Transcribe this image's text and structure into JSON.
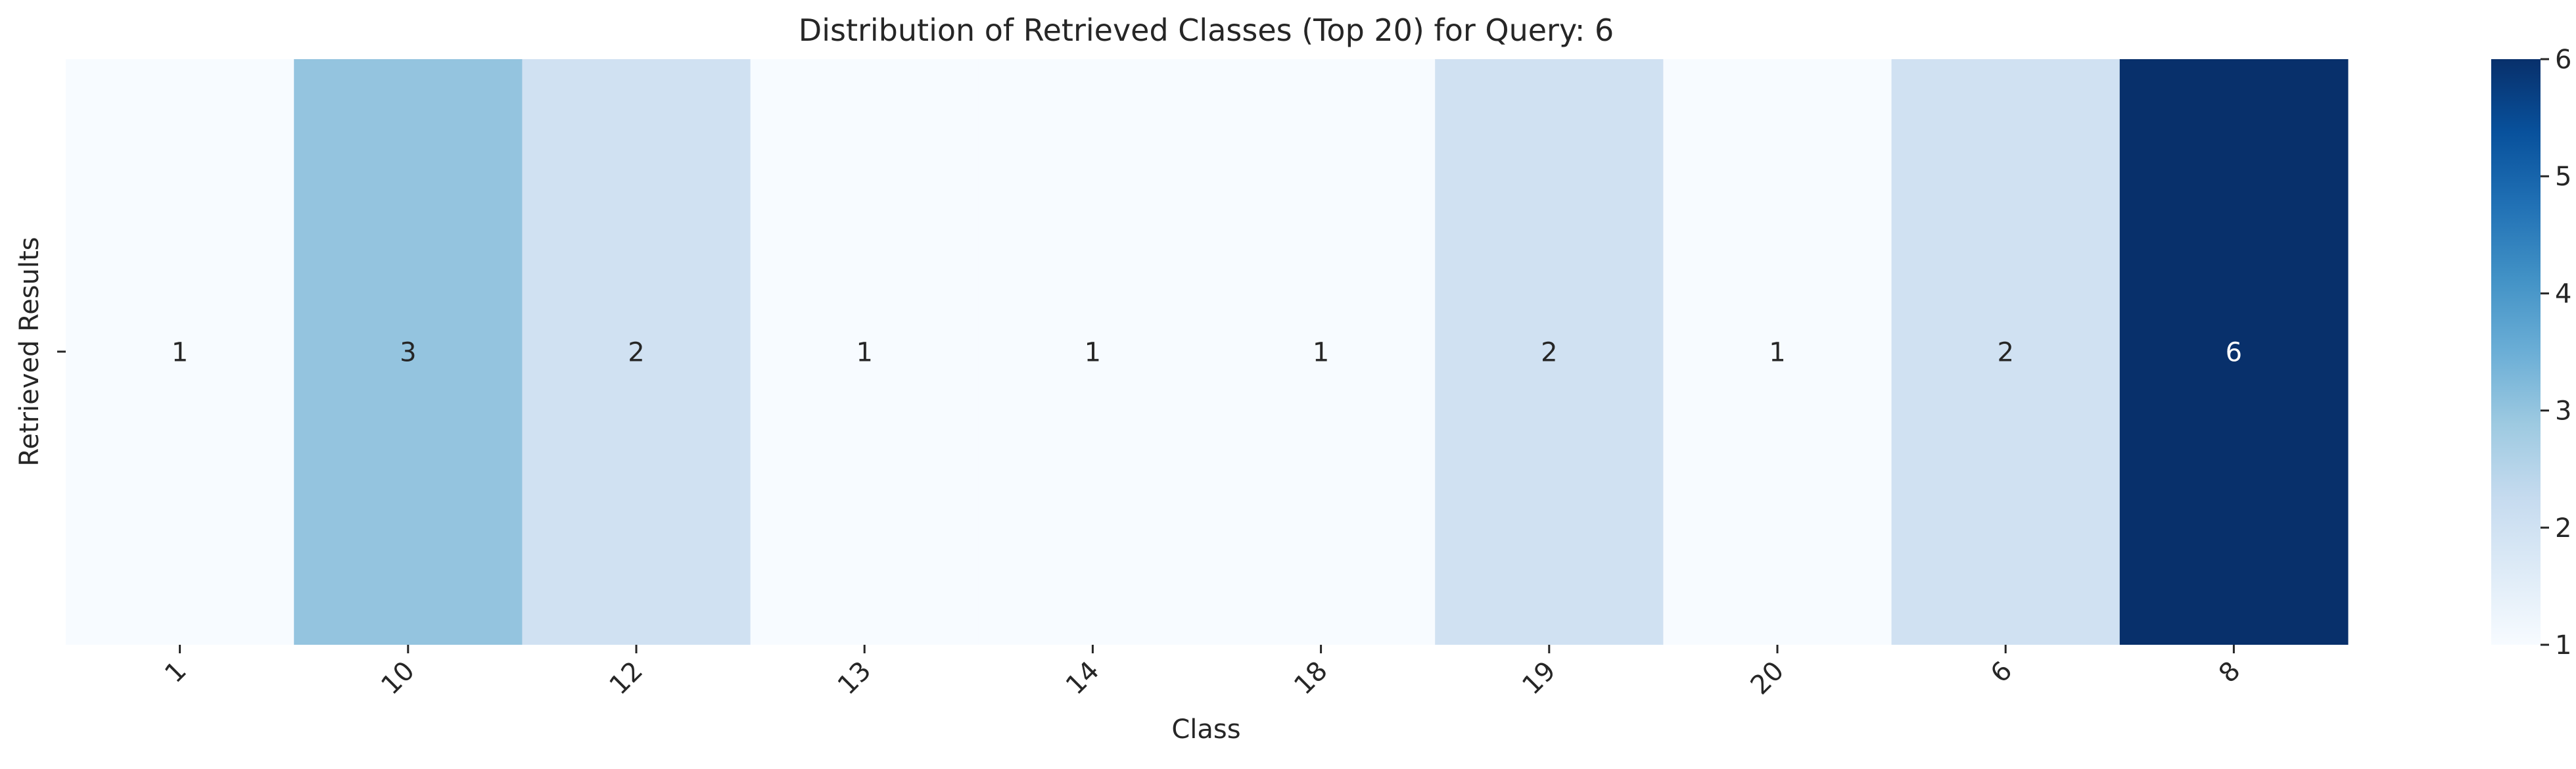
{
  "chart_data": {
    "type": "heatmap",
    "title": "Distribution of Retrieved Classes (Top 20) for Query: 6",
    "xlabel": "Class",
    "ylabel": "Retrieved Results",
    "categories": [
      "1",
      "10",
      "12",
      "13",
      "14",
      "18",
      "19",
      "20",
      "6",
      "8"
    ],
    "values": [
      1,
      3,
      2,
      1,
      1,
      1,
      2,
      1,
      2,
      6
    ],
    "annotations": [
      "1",
      "3",
      "2",
      "1",
      "1",
      "1",
      "2",
      "1",
      "2",
      "6"
    ],
    "colorbar": {
      "min": 1,
      "max": 6,
      "ticks": [
        "1",
        "2",
        "3",
        "4",
        "5",
        "6"
      ],
      "colormap": "Blues"
    },
    "colors": {
      "low": "#f7fbff",
      "high": "#08306b",
      "annotation_dark": "#262626",
      "annotation_light": "#ffffff"
    }
  }
}
